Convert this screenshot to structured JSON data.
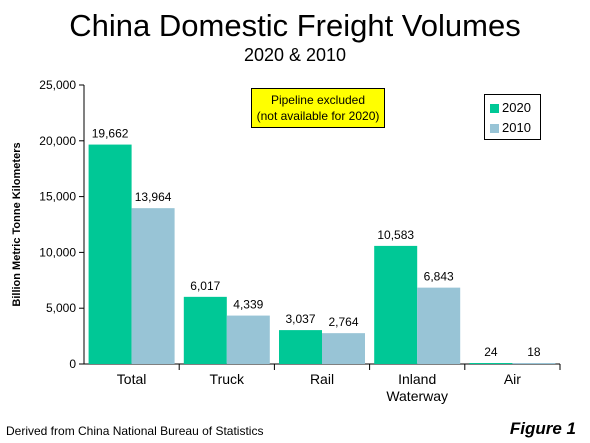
{
  "colors": {
    "series_2020": "#00c896",
    "series_2010": "#98c4d6",
    "note_bg": "#ffff00"
  },
  "chart_data": {
    "type": "bar",
    "title": "China Domestic Freight Volumes",
    "subtitle": "2020 & 2010",
    "ylabel": "Billion Metric Tonne  Kilometers",
    "xlabel": "",
    "categories": [
      "Total",
      "Truck",
      "Rail",
      "Inland Waterway",
      "Air"
    ],
    "category_lines": [
      [
        "Total"
      ],
      [
        "Truck"
      ],
      [
        "Rail"
      ],
      [
        "Inland",
        "Waterway"
      ],
      [
        "Air"
      ]
    ],
    "series": [
      {
        "name": "2020",
        "values": [
          19662,
          6017,
          3037,
          10583,
          24
        ],
        "labels": [
          "19,662",
          "6,017",
          "3,037",
          "10,583",
          "24"
        ]
      },
      {
        "name": "2010",
        "values": [
          13964,
          4339,
          2764,
          6843,
          18
        ],
        "labels": [
          "13,964",
          "4,339",
          "2,764",
          "6,843",
          "18"
        ]
      }
    ],
    "ylim": [
      0,
      25000
    ],
    "yticks": [
      0,
      5000,
      10000,
      15000,
      20000,
      25000
    ],
    "ytick_labels": [
      "0",
      "5,000",
      "10,000",
      "15,000",
      "20,000",
      "25,000"
    ],
    "grid": false,
    "legend_position": "top-right",
    "annotation": [
      "Pipeline excluded",
      "(not available for 2020)"
    ]
  },
  "footer": {
    "source": "Derived from China National Bureau of Statistics",
    "figure_label": "Figure 1"
  }
}
